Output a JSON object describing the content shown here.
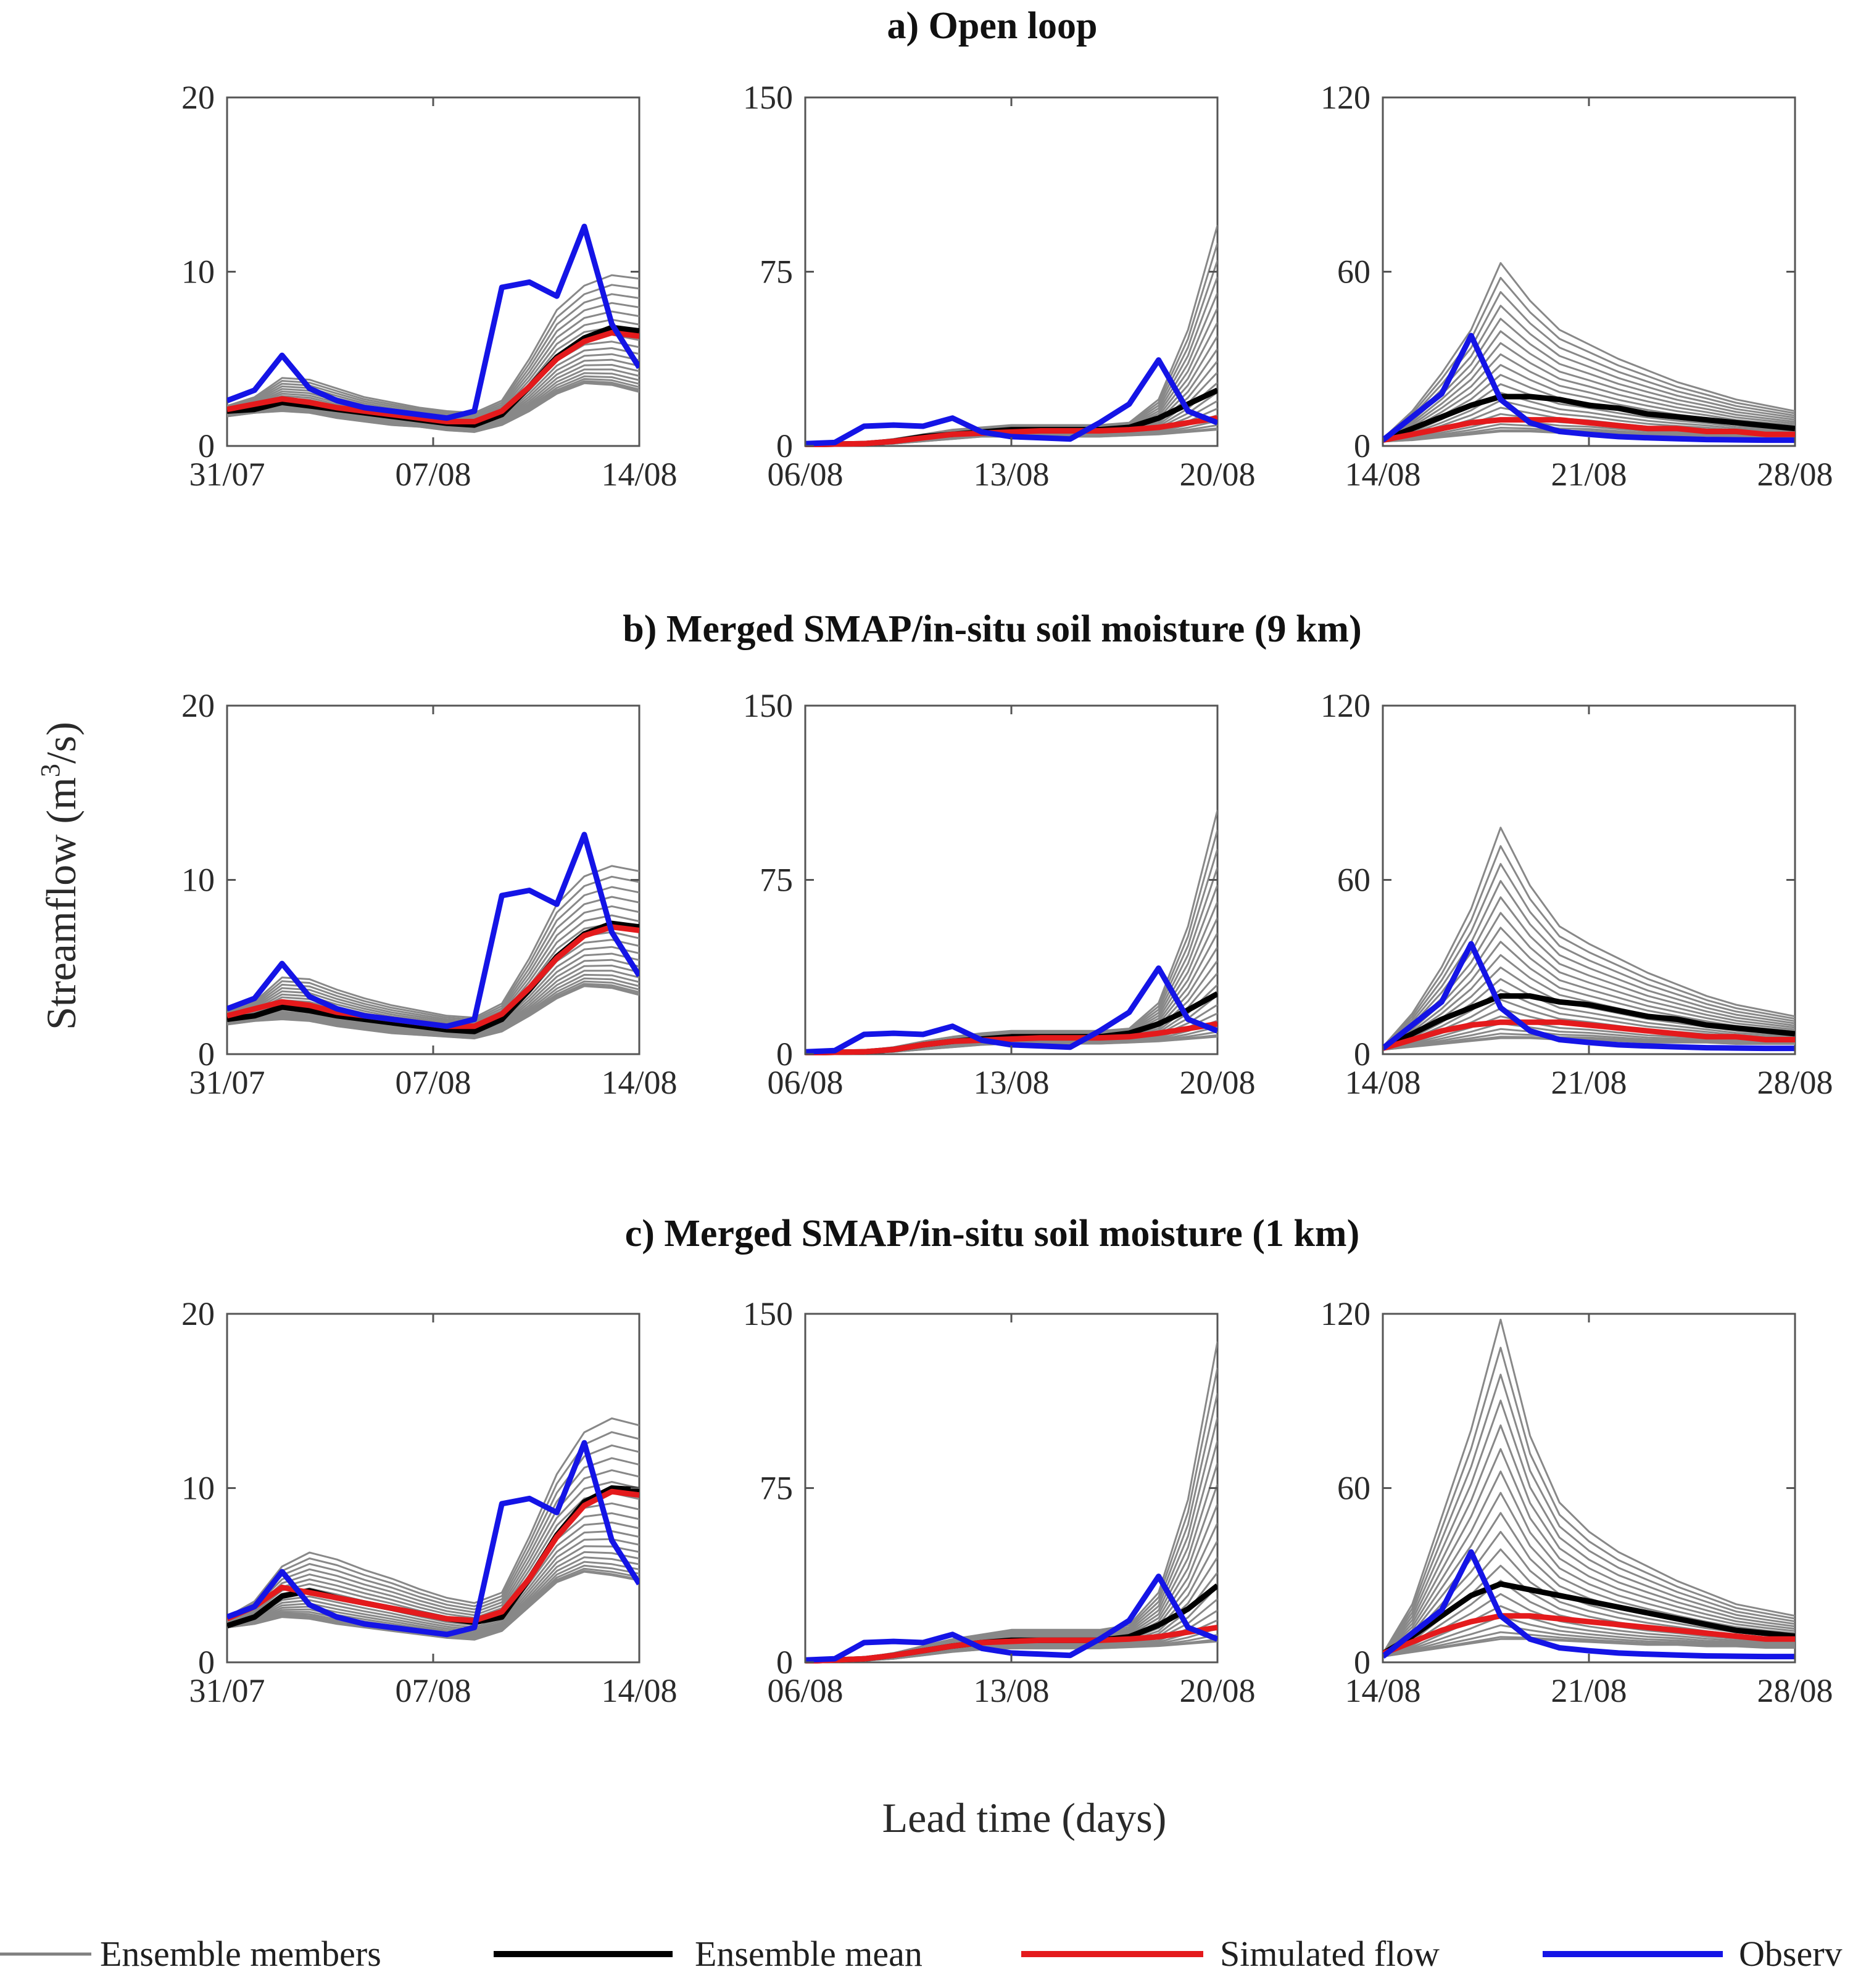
{
  "chart_data": {
    "type": "line",
    "ylabel_main": "Streamflow (m",
    "ylabel_sup": "3",
    "ylabel_tail": "/s)",
    "xlabel": "Lead time (days)",
    "legend": [
      {
        "label": "Ensemble members",
        "color": "#808080"
      },
      {
        "label": "Ensemble mean",
        "color": "#000000"
      },
      {
        "label": "Simulated flow",
        "color": "#e41a1c"
      },
      {
        "label": "Observ",
        "color": "#1414e6"
      }
    ],
    "rows": [
      {
        "title": "a) Open loop"
      },
      {
        "title": "b) Merged SMAP/in-situ soil moisture (9 km)"
      },
      {
        "title": "c) Merged SMAP/in-situ soil moisture (1 km)"
      }
    ],
    "columns": [
      {
        "x_tick_labels": [
          "31/07",
          "07/08",
          "14/08"
        ],
        "x_range_days": [
          0,
          14
        ],
        "y_ticks": [
          0,
          10,
          20
        ],
        "ylim": [
          0,
          20
        ],
        "observed": [
          2.6,
          3.2,
          5.2,
          3.3,
          2.6,
          2.2,
          2.0,
          1.8,
          1.6,
          2.0,
          9.1,
          9.4,
          8.6,
          12.6,
          7.0,
          4.5
        ]
      },
      {
        "x_tick_labels": [
          "06/08",
          "13/08",
          "20/08"
        ],
        "x_range_days": [
          0,
          14
        ],
        "y_ticks": [
          0,
          75,
          150
        ],
        "ylim": [
          0,
          150
        ],
        "observed": [
          1,
          1.5,
          8.5,
          9,
          8.5,
          12,
          6,
          4,
          3.5,
          3,
          10,
          18,
          37,
          15,
          10
        ]
      },
      {
        "x_tick_labels": [
          "14/08",
          "21/08",
          "28/08"
        ],
        "x_range_days": [
          0,
          14
        ],
        "y_ticks": [
          0,
          60,
          120
        ],
        "ylim": [
          0,
          120
        ],
        "observed": [
          2,
          10,
          18,
          38,
          16,
          8,
          5,
          4,
          3.2,
          2.8,
          2.5,
          2.2,
          2.1,
          2.0,
          2.0
        ]
      }
    ],
    "panels": [
      {
        "row": 0,
        "col": 0,
        "mean": [
          2.0,
          2.1,
          2.5,
          2.3,
          2.1,
          1.9,
          1.7,
          1.5,
          1.3,
          1.2,
          1.8,
          3.4,
          5.1,
          6.2,
          6.8,
          6.6
        ],
        "simulated": [
          2.1,
          2.4,
          2.7,
          2.5,
          2.2,
          2.0,
          1.8,
          1.6,
          1.4,
          1.4,
          2.0,
          3.4,
          5.0,
          6.0,
          6.5,
          6.3
        ],
        "ensemble_min": [
          1.7,
          1.9,
          2.0,
          1.9,
          1.6,
          1.4,
          1.2,
          1.1,
          0.9,
          0.8,
          1.2,
          2.0,
          3.0,
          3.6,
          3.5,
          3.1
        ],
        "ensemble_max": [
          2.3,
          2.8,
          3.9,
          3.8,
          3.3,
          2.8,
          2.5,
          2.2,
          2.0,
          1.9,
          2.6,
          5.0,
          7.8,
          9.2,
          9.8,
          9.6
        ]
      },
      {
        "row": 0,
        "col": 1,
        "mean": [
          0.5,
          0.8,
          1,
          2,
          4,
          5,
          6,
          7,
          7,
          7,
          7,
          8,
          12,
          18,
          24
        ],
        "simulated": [
          0.5,
          0.8,
          1,
          2,
          3.5,
          5,
          5.5,
          6,
          6.5,
          6.5,
          6.5,
          7,
          8,
          10,
          12
        ],
        "ensemble_min": [
          0.2,
          0.5,
          0.7,
          1,
          2,
          3,
          4,
          4,
          4,
          4,
          4,
          4.5,
          5,
          6,
          7
        ],
        "ensemble_max": [
          0.8,
          1.2,
          1.5,
          3,
          5,
          7,
          8,
          9,
          9,
          9,
          9,
          10,
          20,
          50,
          95
        ]
      },
      {
        "row": 0,
        "col": 2,
        "mean": [
          2,
          6,
          10,
          14,
          17,
          17,
          16,
          14,
          13,
          11,
          10,
          9,
          8,
          7,
          6
        ],
        "simulated": [
          2,
          4,
          6,
          8,
          9,
          9,
          9,
          8,
          7,
          6,
          6,
          5,
          5,
          4,
          4
        ],
        "ensemble_min": [
          1.5,
          2,
          3,
          4,
          5,
          5,
          4.5,
          4.5,
          4,
          3.5,
          3.5,
          3.5,
          3,
          3,
          3
        ],
        "ensemble_max": [
          2.5,
          12,
          25,
          40,
          63,
          50,
          40,
          35,
          30,
          26,
          22,
          19,
          16,
          14,
          12
        ]
      },
      {
        "row": 1,
        "col": 0,
        "mean": [
          2.0,
          2.2,
          2.7,
          2.5,
          2.2,
          2.0,
          1.8,
          1.6,
          1.4,
          1.3,
          2.0,
          3.7,
          5.6,
          6.9,
          7.5,
          7.3
        ],
        "simulated": [
          2.2,
          2.6,
          3.0,
          2.8,
          2.4,
          2.2,
          2.0,
          1.8,
          1.6,
          1.6,
          2.3,
          3.8,
          5.5,
          6.8,
          7.3,
          7.1
        ],
        "ensemble_min": [
          1.7,
          1.9,
          2.0,
          1.9,
          1.6,
          1.4,
          1.2,
          1.1,
          1.0,
          0.9,
          1.3,
          2.2,
          3.2,
          3.9,
          3.8,
          3.4
        ],
        "ensemble_max": [
          2.4,
          3.0,
          4.4,
          4.3,
          3.7,
          3.2,
          2.8,
          2.5,
          2.2,
          2.1,
          2.9,
          5.5,
          8.6,
          10.2,
          10.8,
          10.5
        ]
      },
      {
        "row": 1,
        "col": 1,
        "mean": [
          0.5,
          0.8,
          1,
          2,
          4,
          5.5,
          6.5,
          7.5,
          7.5,
          7.5,
          7.5,
          9,
          13,
          19,
          26
        ],
        "simulated": [
          0.5,
          0.8,
          1,
          2,
          4,
          5.5,
          6,
          6.5,
          7,
          7,
          7,
          7.5,
          9,
          11,
          13
        ],
        "ensemble_min": [
          0.2,
          0.5,
          0.7,
          1,
          2,
          3,
          4,
          4.5,
          4.5,
          4.5,
          4.5,
          5,
          5.5,
          6.5,
          7.5
        ],
        "ensemble_max": [
          0.8,
          1.2,
          1.5,
          3,
          5.5,
          7.5,
          9,
          10,
          10,
          10,
          10,
          11,
          22,
          55,
          105
        ]
      },
      {
        "row": 1,
        "col": 2,
        "mean": [
          2,
          7,
          12,
          16,
          20,
          20,
          18,
          17,
          15,
          13,
          12,
          10,
          9,
          8,
          7
        ],
        "simulated": [
          2,
          5,
          8,
          10,
          11,
          11,
          11,
          10,
          9,
          8,
          7,
          6,
          6,
          5,
          5
        ],
        "ensemble_min": [
          1.5,
          2.5,
          3.5,
          4.5,
          5.5,
          5.5,
          5,
          5,
          4.5,
          4,
          4,
          4,
          3.5,
          3.5,
          3.5
        ],
        "ensemble_max": [
          2.5,
          14,
          30,
          50,
          78,
          58,
          44,
          38,
          33,
          28,
          24,
          20,
          17,
          15,
          13
        ]
      },
      {
        "row": 2,
        "col": 0,
        "mean": [
          2.1,
          2.6,
          3.8,
          4.1,
          3.7,
          3.4,
          3.1,
          2.8,
          2.5,
          2.3,
          2.6,
          4.8,
          7.3,
          9.2,
          10.0,
          9.9
        ],
        "simulated": [
          2.5,
          3.2,
          4.3,
          4.0,
          3.7,
          3.4,
          3.1,
          2.8,
          2.5,
          2.4,
          2.9,
          4.8,
          7.2,
          9.0,
          9.8,
          9.6
        ],
        "ensemble_min": [
          2.0,
          2.2,
          2.6,
          2.5,
          2.2,
          2.0,
          1.8,
          1.6,
          1.4,
          1.3,
          1.8,
          3.2,
          4.6,
          5.2,
          5.0,
          4.7
        ],
        "ensemble_max": [
          2.6,
          3.5,
          5.5,
          6.3,
          5.9,
          5.3,
          4.8,
          4.2,
          3.7,
          3.4,
          4.0,
          7.2,
          10.8,
          13.2,
          14.0,
          13.6
        ]
      },
      {
        "row": 2,
        "col": 1,
        "mean": [
          0.5,
          1,
          1.5,
          3,
          5,
          7,
          8.5,
          9.5,
          9.5,
          9.5,
          9.5,
          11,
          16,
          23,
          33
        ],
        "simulated": [
          0.5,
          1,
          1.5,
          3,
          5,
          7,
          8.5,
          9,
          9.5,
          9.5,
          9.5,
          10,
          11,
          13,
          15
        ],
        "ensemble_min": [
          0.2,
          0.5,
          0.7,
          1.5,
          3,
          4.5,
          5.5,
          6,
          6,
          6,
          6,
          6.5,
          7,
          8,
          9
        ],
        "ensemble_max": [
          0.8,
          1.5,
          2,
          4,
          7,
          10,
          12,
          14,
          14,
          14,
          14,
          16,
          30,
          70,
          138
        ]
      },
      {
        "row": 2,
        "col": 2,
        "mean": [
          3,
          9,
          16,
          23,
          27,
          25,
          23,
          21,
          19,
          17,
          15,
          13,
          11,
          10,
          9
        ],
        "simulated": [
          3,
          7,
          11,
          14,
          16,
          16,
          15,
          14,
          13,
          12,
          11,
          10,
          9,
          8,
          8
        ],
        "ensemble_min": [
          2,
          3.5,
          5,
          6.5,
          8,
          8,
          7.5,
          7,
          6.5,
          6,
          6,
          5.5,
          5.5,
          5,
          5
        ],
        "ensemble_max": [
          3,
          20,
          50,
          80,
          118,
          78,
          55,
          45,
          38,
          33,
          28,
          24,
          20,
          18,
          16
        ]
      }
    ]
  }
}
